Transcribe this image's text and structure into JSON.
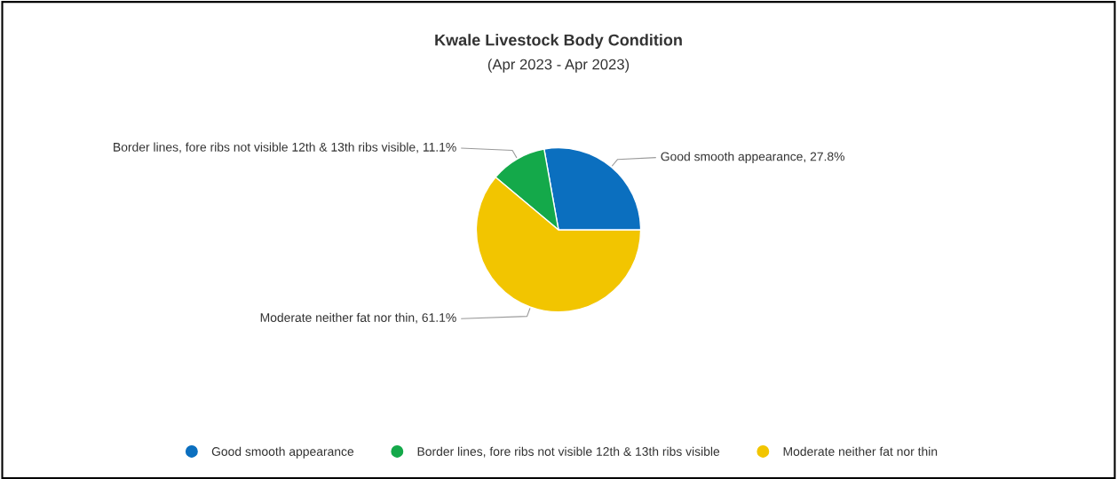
{
  "chart_data": {
    "type": "pie",
    "title": "Kwale Livestock Body Condition",
    "subtitle": "(Apr 2023 - Apr 2023)",
    "categories": [
      "Good smooth appearance",
      "Border lines, fore ribs not visible 12th & 13th ribs visible",
      "Moderate neither fat nor thin"
    ],
    "values": [
      27.8,
      11.1,
      61.1
    ],
    "colors": [
      "#0b6fbf",
      "#14a94a",
      "#f2c500"
    ],
    "value_labels": [
      "Good smooth appearance, 27.8%",
      "Border lines, fore ribs not visible 12th & 13th ribs visible, 11.1%",
      "Moderate neither fat nor thin, 61.1%"
    ],
    "legend": "bottom"
  }
}
